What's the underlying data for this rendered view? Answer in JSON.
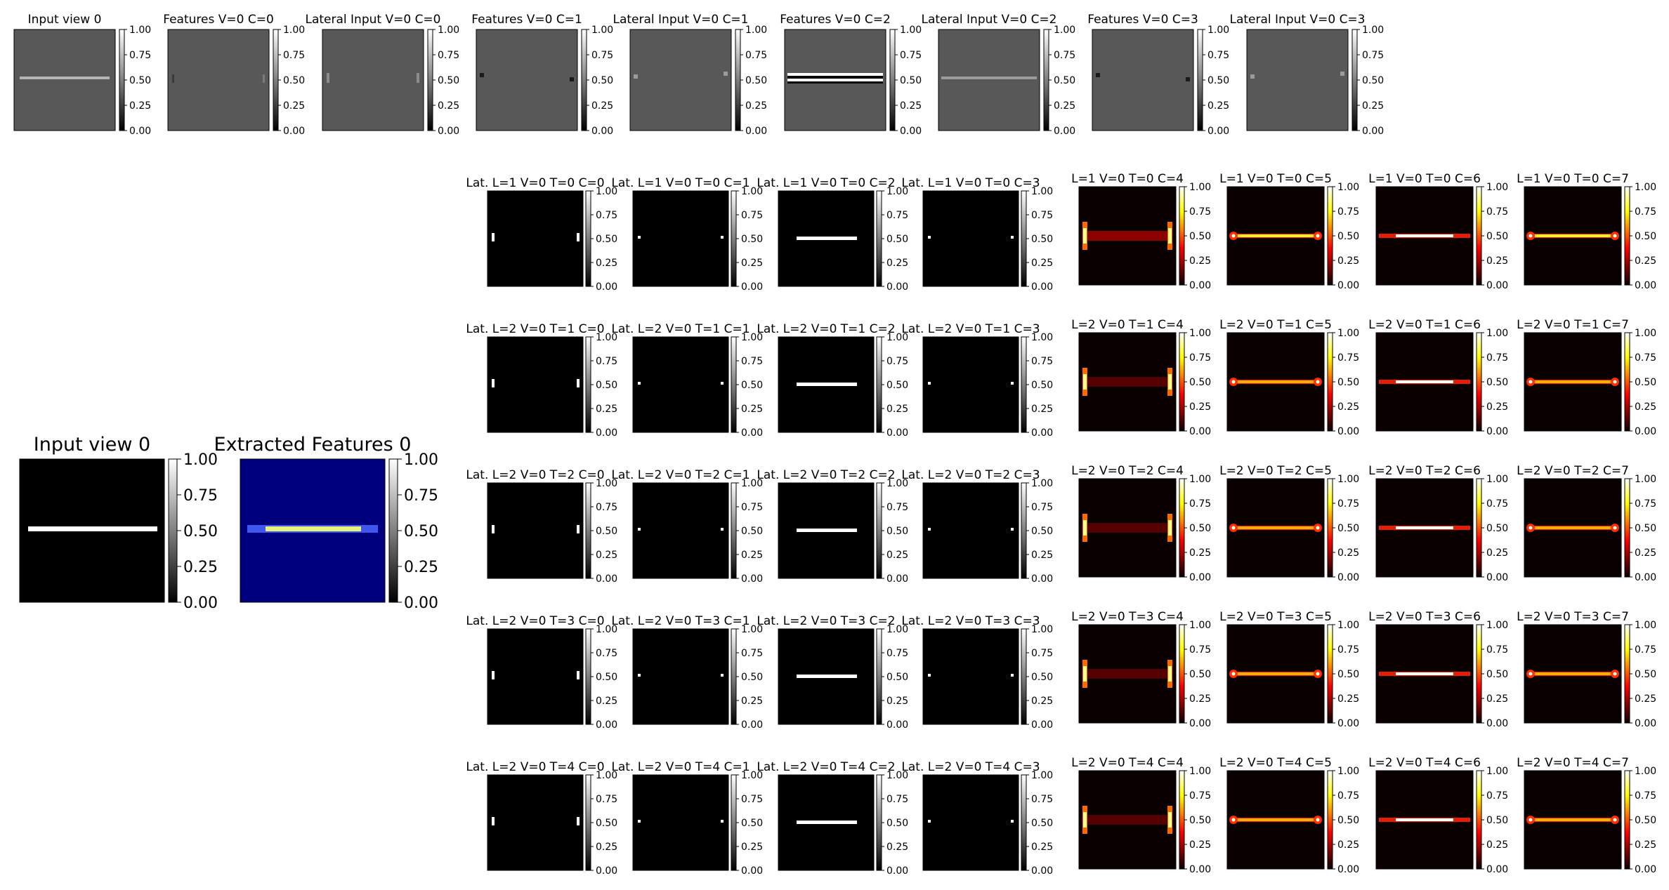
{
  "figure": {
    "top_row_titles": [
      "Input view 0",
      "Features V=0 C=0",
      "Lateral Input V=0 C=0",
      "Features V=0 C=1",
      "Lateral Input V=0 C=1",
      "Features V=0 C=2",
      "Lateral Input V=0 C=2",
      "Features V=0 C=3",
      "Lateral Input V=0 C=3"
    ],
    "big_titles": [
      "Input view 0",
      "Extracted Features 0"
    ],
    "grid_rows": [
      [
        "Lat. L=1 V=0 T=0 C=0",
        "Lat. L=1 V=0 T=0 C=1",
        "Lat. L=1 V=0 T=0 C=2",
        "Lat. L=1 V=0 T=0 C=3",
        "L=1 V=0 T=0 C=4",
        "L=1 V=0 T=0 C=5",
        "L=1 V=0 T=0 C=6",
        "L=1 V=0 T=0 C=7"
      ],
      [
        "Lat. L=2 V=0 T=1 C=0",
        "Lat. L=2 V=0 T=1 C=1",
        "Lat. L=2 V=0 T=1 C=2",
        "Lat. L=2 V=0 T=1 C=3",
        "L=2 V=0 T=1 C=4",
        "L=2 V=0 T=1 C=5",
        "L=2 V=0 T=1 C=6",
        "L=2 V=0 T=1 C=7"
      ],
      [
        "Lat. L=2 V=0 T=2 C=0",
        "Lat. L=2 V=0 T=2 C=1",
        "Lat. L=2 V=0 T=2 C=2",
        "Lat. L=2 V=0 T=2 C=3",
        "L=2 V=0 T=2 C=4",
        "L=2 V=0 T=2 C=5",
        "L=2 V=0 T=2 C=6",
        "L=2 V=0 T=2 C=7"
      ],
      [
        "Lat. L=2 V=0 T=3 C=0",
        "Lat. L=2 V=0 T=3 C=1",
        "Lat. L=2 V=0 T=3 C=2",
        "Lat. L=2 V=0 T=3 C=3",
        "L=2 V=0 T=3 C=4",
        "L=2 V=0 T=3 C=5",
        "L=2 V=0 T=3 C=6",
        "L=2 V=0 T=3 C=7"
      ],
      [
        "Lat. L=2 V=0 T=4 C=0",
        "Lat. L=2 V=0 T=4 C=1",
        "Lat. L=2 V=0 T=4 C=2",
        "Lat. L=2 V=0 T=4 C=3",
        "L=2 V=0 T=4 C=4",
        "L=2 V=0 T=4 C=5",
        "L=2 V=0 T=4 C=6",
        "L=2 V=0 T=4 C=7"
      ]
    ],
    "colorbar_ticks": [
      "0.00",
      "0.25",
      "0.50",
      "0.75",
      "1.00"
    ],
    "colormaps": {
      "gray": "gray",
      "hot": "hot",
      "jet": "jet"
    }
  },
  "chart_data": {
    "type": "heatmap",
    "panel_count": 51,
    "colorbar_range": [
      0,
      1
    ],
    "colorbar_ticks": [
      0.0,
      0.25,
      0.5,
      0.75,
      1.0
    ],
    "layout": "9 top-row panels, 2 large panels (left), 5 rows x 8 columns of lateral panels",
    "lateral_colormap_columns": {
      "C=0..C=3": "gray",
      "C=4..C=7": "hot"
    },
    "extracted_features_colormap": "jet"
  }
}
